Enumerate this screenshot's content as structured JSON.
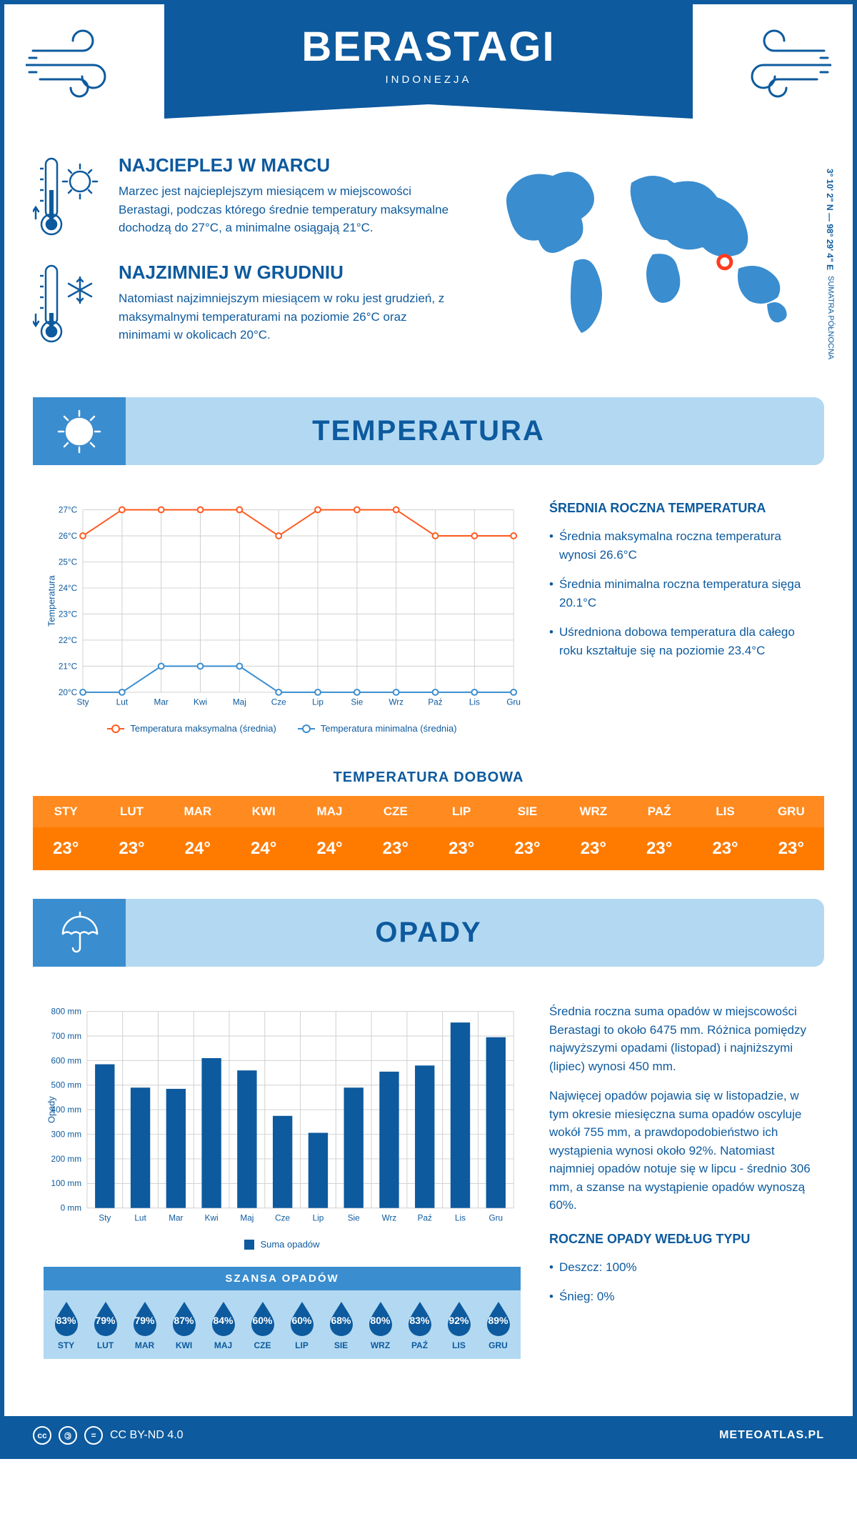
{
  "colors": {
    "primary": "#0d5a9e",
    "secondary": "#3a8dcf",
    "light": "#b3d9f2",
    "orange": "#ff7b00",
    "orange_light": "#ff8a1f",
    "max_line": "#ff5a1f",
    "min_line": "#3a8dcf",
    "bar_fill": "#0d5a9e",
    "grid": "#d0d0d0",
    "white": "#ffffff",
    "marker_red": "#ff3b1f"
  },
  "header": {
    "city": "BERASTAGI",
    "country": "INDONEZJA"
  },
  "facts": {
    "warm": {
      "title": "NAJCIEPLEJ W MARCU",
      "body": "Marzec jest najcieplejszym miesiącem w miejscowości Berastagi, podczas którego średnie temperatury maksymalne dochodzą do 27°C, a minimalne osiągają 21°C."
    },
    "cold": {
      "title": "NAJZIMNIEJ W GRUDNIU",
      "body": "Natomiast najzimniejszym miesiącem w roku jest grudzień, z maksymalnymi temperaturami na poziomie 26°C oraz minimami w okolicach 20°C."
    }
  },
  "map": {
    "coords": "3° 10' 2\" N — 98° 29' 4\" E",
    "region": "SUMATRA PÓŁNOCNA",
    "marker": {
      "cx_pct": 71,
      "cy_pct": 58
    }
  },
  "months": [
    "Sty",
    "Lut",
    "Mar",
    "Kwi",
    "Maj",
    "Cze",
    "Lip",
    "Sie",
    "Wrz",
    "Paź",
    "Lis",
    "Gru"
  ],
  "months_upper": [
    "STY",
    "LUT",
    "MAR",
    "KWI",
    "MAJ",
    "CZE",
    "LIP",
    "SIE",
    "WRZ",
    "PAŹ",
    "LIS",
    "GRU"
  ],
  "temperature": {
    "section_title": "TEMPERATURA",
    "chart": {
      "type": "line",
      "y_label": "Temperatura",
      "y_min": 20,
      "y_max": 27,
      "y_step": 1,
      "y_suffix": "°C",
      "series": {
        "max": {
          "label": "Temperatura maksymalna (średnia)",
          "color": "#ff5a1f",
          "values": [
            26,
            27,
            27,
            27,
            27,
            26,
            27,
            27,
            27,
            26,
            26,
            26
          ]
        },
        "min": {
          "label": "Temperatura minimalna (średnia)",
          "color": "#3a8dcf",
          "values": [
            20,
            20,
            21,
            21,
            21,
            20,
            20,
            20,
            20,
            20,
            20,
            20
          ]
        }
      },
      "marker_radius": 4,
      "line_width": 2
    },
    "stats": {
      "heading": "ŚREDNIA ROCZNA TEMPERATURA",
      "items": [
        "Średnia maksymalna roczna temperatura wynosi 26.6°C",
        "Średnia minimalna roczna temperatura sięga 20.1°C",
        "Uśredniona dobowa temperatura dla całego roku kształtuje się na poziomie 23.4°C"
      ]
    },
    "daily": {
      "title": "TEMPERATURA DOBOWA",
      "values": [
        "23°",
        "23°",
        "24°",
        "24°",
        "24°",
        "23°",
        "23°",
        "23°",
        "23°",
        "23°",
        "23°",
        "23°"
      ]
    }
  },
  "precipitation": {
    "section_title": "OPADY",
    "chart": {
      "type": "bar",
      "y_label": "Opady",
      "y_min": 0,
      "y_max": 800,
      "y_step": 100,
      "y_suffix": " mm",
      "series_label": "Suma opadów",
      "values": [
        585,
        490,
        485,
        610,
        560,
        375,
        306,
        490,
        555,
        580,
        755,
        695
      ],
      "bar_color": "#0d5a9e",
      "bar_width_ratio": 0.55
    },
    "text": [
      "Średnia roczna suma opadów w miejscowości Berastagi to około 6475 mm. Różnica pomiędzy najwyższymi opadami (listopad) i najniższymi (lipiec) wynosi 450 mm.",
      "Najwięcej opadów pojawia się w listopadzie, w tym okresie miesięczna suma opadów oscyluje wokół 755 mm, a prawdopodobieństwo ich wystąpienia wynosi około 92%. Natomiast najmniej opadów notuje się w lipcu - średnio 306 mm, a szanse na wystąpienie opadów wynoszą 60%."
    ],
    "chance": {
      "title": "SZANSA OPADÓW",
      "values": [
        "83%",
        "79%",
        "79%",
        "87%",
        "84%",
        "60%",
        "60%",
        "68%",
        "80%",
        "83%",
        "92%",
        "89%"
      ]
    },
    "by_type": {
      "heading": "ROCZNE OPADY WEDŁUG TYPU",
      "items": [
        "Deszcz: 100%",
        "Śnieg: 0%"
      ]
    }
  },
  "footer": {
    "license": "CC BY-ND 4.0",
    "site": "METEOATLAS.PL"
  }
}
